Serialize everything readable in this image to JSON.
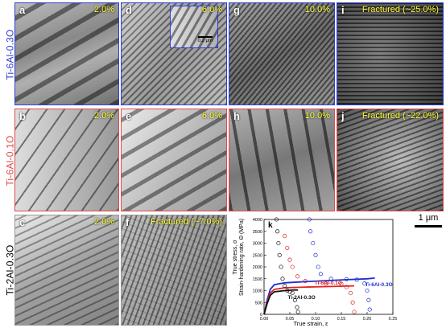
{
  "rows": [
    {
      "label": "Ti-6Al-0.3O",
      "color": "#2b3fd8"
    },
    {
      "label": "Ti-6Al-0.1O",
      "color": "#e14b4b"
    },
    {
      "label": "Ti-2Al-0.3O",
      "color": "#000000"
    }
  ],
  "panels": {
    "a": {
      "letter": "a",
      "value": "2.0%"
    },
    "d": {
      "letter": "d",
      "value": "6.0%"
    },
    "g": {
      "letter": "g",
      "value": "10.0%"
    },
    "i": {
      "letter": "i",
      "value": "Fractured (~25.0%)"
    },
    "b": {
      "letter": "b",
      "value": "2.0%"
    },
    "e": {
      "letter": "e",
      "value": "6.0%"
    },
    "h": {
      "letter": "h",
      "value": "10.0%"
    },
    "j": {
      "letter": "j",
      "value": "Fractured (~22.0%)"
    },
    "c": {
      "letter": "c",
      "value": "2.0%"
    },
    "f": {
      "letter": "f",
      "value": "Fractured (~7.0%)"
    }
  },
  "inset_scale": "0.2 μm",
  "scale_bar": "1 μm",
  "chart_data": {
    "type": "line",
    "panel_letter": "k",
    "xlabel": "True strain, ε",
    "ylabel_lines": [
      "True stress, σ",
      "Strain-hardening rate, Θ (MPa)"
    ],
    "xlim": [
      0,
      0.25
    ],
    "ylim": [
      0,
      4000
    ],
    "xticks": [
      "0.00",
      "0.05",
      "0.10",
      "0.15",
      "0.20",
      "0.25"
    ],
    "yticks": [
      "0",
      "500",
      "1000",
      "1500",
      "2000",
      "2500",
      "3000",
      "3500",
      "4000"
    ],
    "series": [
      {
        "name": "Ti-6Al-0.3O",
        "color": "#1f2fd0",
        "stress": [
          [
            0,
            0
          ],
          [
            0.006,
            600
          ],
          [
            0.012,
            1050
          ],
          [
            0.02,
            1250
          ],
          [
            0.04,
            1330
          ],
          [
            0.08,
            1380
          ],
          [
            0.12,
            1420
          ],
          [
            0.16,
            1460
          ],
          [
            0.2,
            1500
          ],
          [
            0.215,
            1530
          ]
        ],
        "hardening": [
          [
            0.088,
            4000
          ],
          [
            0.09,
            3500
          ],
          [
            0.095,
            3000
          ],
          [
            0.1,
            2500
          ],
          [
            0.105,
            2000
          ],
          [
            0.11,
            1700
          ],
          [
            0.13,
            1500
          ],
          [
            0.16,
            1480
          ],
          [
            0.18,
            1460
          ],
          [
            0.195,
            1300
          ],
          [
            0.2,
            1000
          ],
          [
            0.203,
            600
          ],
          [
            0.205,
            200
          ]
        ]
      },
      {
        "name": "Ti-6Al-0.1O",
        "color": "#e41f1f",
        "stress": [
          [
            0,
            0
          ],
          [
            0.006,
            500
          ],
          [
            0.012,
            900
          ],
          [
            0.02,
            1050
          ],
          [
            0.04,
            1120
          ],
          [
            0.08,
            1150
          ],
          [
            0.12,
            1170
          ],
          [
            0.16,
            1190
          ],
          [
            0.175,
            1200
          ]
        ],
        "hardening": [
          [
            0.04,
            3300
          ],
          [
            0.045,
            2800
          ],
          [
            0.05,
            2300
          ],
          [
            0.055,
            2000
          ],
          [
            0.065,
            1600
          ],
          [
            0.08,
            1400
          ],
          [
            0.12,
            1300
          ],
          [
            0.15,
            1280
          ],
          [
            0.16,
            1150
          ],
          [
            0.168,
            900
          ],
          [
            0.172,
            500
          ],
          [
            0.175,
            100
          ]
        ]
      },
      {
        "name": "Ti-2Al-0.3O",
        "color": "#111111",
        "stress": [
          [
            0,
            0
          ],
          [
            0.006,
            450
          ],
          [
            0.012,
            800
          ],
          [
            0.02,
            950
          ],
          [
            0.04,
            1000
          ],
          [
            0.06,
            1030
          ],
          [
            0.066,
            1020
          ]
        ],
        "hardening": [
          [
            0.024,
            4000
          ],
          [
            0.026,
            3500
          ],
          [
            0.028,
            3000
          ],
          [
            0.03,
            2500
          ],
          [
            0.033,
            2000
          ],
          [
            0.036,
            1500
          ],
          [
            0.04,
            1200
          ],
          [
            0.045,
            1000
          ],
          [
            0.05,
            950
          ],
          [
            0.055,
            900
          ],
          [
            0.06,
            600
          ],
          [
            0.064,
            300
          ],
          [
            0.066,
            100
          ]
        ]
      }
    ]
  }
}
